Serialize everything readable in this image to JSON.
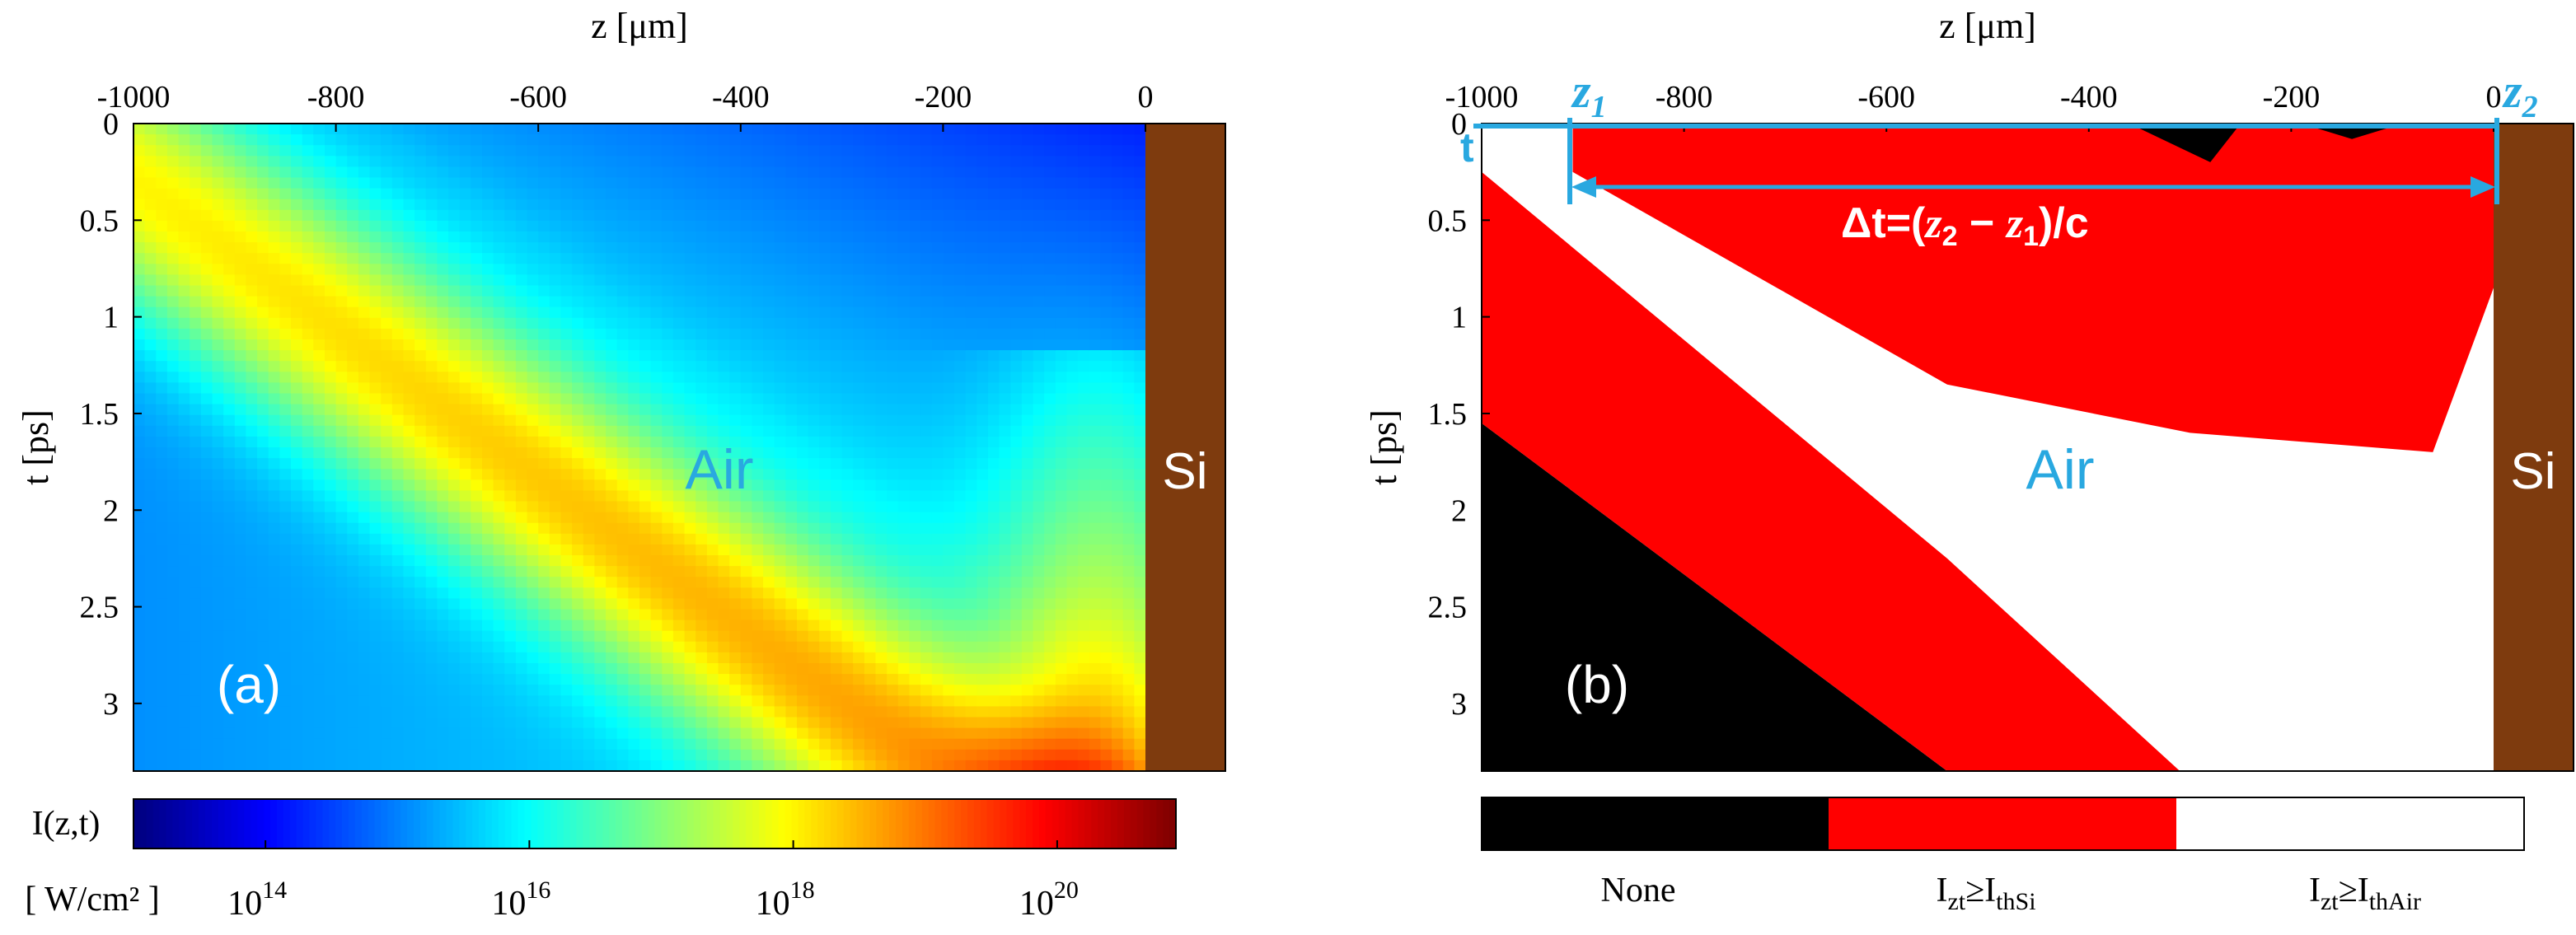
{
  "chart_data": [
    {
      "panel_label": "(a)",
      "type": "heatmap",
      "x_axis": {
        "label": "z [μm]",
        "range": [
          -1000,
          0
        ],
        "ticks": [
          -1000,
          -800,
          -600,
          -400,
          -200,
          0
        ],
        "position": "top"
      },
      "y_axis": {
        "label": "t [ps]",
        "range": [
          0,
          3.35
        ],
        "ticks": [
          0,
          0.5,
          1,
          1.5,
          2,
          2.5,
          3
        ],
        "reversed": true
      },
      "region_labels": {
        "air": "Air",
        "si": "Si"
      },
      "colorbar": {
        "label": "I(z,t)",
        "unit": "[ W/cm² ]",
        "scale": "log10",
        "range": [
          13,
          20.9
        ],
        "tick_exponents": [
          14,
          16,
          18,
          20
        ],
        "colormap": "jet"
      },
      "field_model": {
        "description": "log10 intensity ridge along t = 0.00385*(z+1000)+0.3 ps, rising toward the Si interface",
        "ridge_slope_ps_per_um": 0.00385,
        "ridge_offset_ps": 0.3
      }
    },
    {
      "panel_label": "(b)",
      "type": "heatmap",
      "x_axis": {
        "label": "z [μm]",
        "range": [
          -1000,
          0
        ],
        "ticks": [
          -1000,
          -800,
          -600,
          -400,
          -200,
          0
        ],
        "position": "top"
      },
      "y_axis": {
        "label": "t [ps]",
        "range": [
          0,
          3.35
        ],
        "ticks": [
          0,
          0.5,
          1,
          1.5,
          2,
          2.5,
          3
        ],
        "reversed": true
      },
      "region_labels": {
        "air": "Air",
        "si": "Si"
      },
      "categories": [
        "None",
        "I_zt ≥ I_thSi",
        "I_zt ≥ I_thAir"
      ],
      "category_colors": [
        "#000000",
        "#ff0000",
        "#ffffff"
      ],
      "regions": [
        {
          "name": "black-lower-left",
          "category": "None",
          "polygon_data": [
            [
              -1000,
              1.55
            ],
            [
              -540,
              3.35
            ],
            [
              -1000,
              3.35
            ]
          ]
        },
        {
          "name": "red-diagonal-band",
          "category": "I_zt ≥ I_thSi",
          "polygon_data": [
            [
              -1000,
              0.25
            ],
            [
              -540,
              2.25
            ],
            [
              -310,
              3.35
            ],
            [
              -540,
              3.35
            ],
            [
              -1000,
              1.55
            ]
          ]
        },
        {
          "name": "red-upper-region",
          "category": "I_zt ≥ I_thSi",
          "polygon_data": [
            [
              -910,
              0.0
            ],
            [
              0,
              0.0
            ],
            [
              0,
              0.85
            ],
            [
              -60,
              1.7
            ],
            [
              -300,
              1.6
            ],
            [
              -540,
              1.35
            ],
            [
              -910,
              0.25
            ]
          ]
        },
        {
          "name": "black-top-speck-1",
          "category": "None",
          "polygon_data": [
            [
              -360,
              0.0
            ],
            [
              -250,
              0.0
            ],
            [
              -280,
              0.2
            ]
          ]
        },
        {
          "name": "black-top-speck-2",
          "category": "None",
          "polygon_data": [
            [
              -190,
              0.0
            ],
            [
              -90,
              0.0
            ],
            [
              -140,
              0.08
            ]
          ]
        }
      ],
      "annotations": {
        "z1": {
          "label": "z",
          "subscript": "1",
          "z_um": -910
        },
        "z2": {
          "label": "z",
          "subscript": "2",
          "z_um": 0
        },
        "t_marker": "t",
        "delta_t_prefix": "Δt=(",
        "delta_t_z2": "z",
        "delta_t_z2_sub": "2",
        "delta_t_minus": " − ",
        "delta_t_z1": "z",
        "delta_t_z1_sub": "1",
        "delta_t_suffix": ")/c",
        "annotation_color": "#29a8e0"
      },
      "legend": {
        "none": "None",
        "si_main": "I",
        "si_sub": "zt",
        "si_rel": "≥I",
        "si_thsub": "thSi",
        "air_main": "I",
        "air_sub": "zt",
        "air_rel": "≥I",
        "air_thsub": "thAir"
      }
    }
  ],
  "colors": {
    "si_block": "#7e3b0e",
    "region_label": "#29a8e0",
    "panel_label": "#ffffff",
    "si_label": "#ffffff"
  }
}
